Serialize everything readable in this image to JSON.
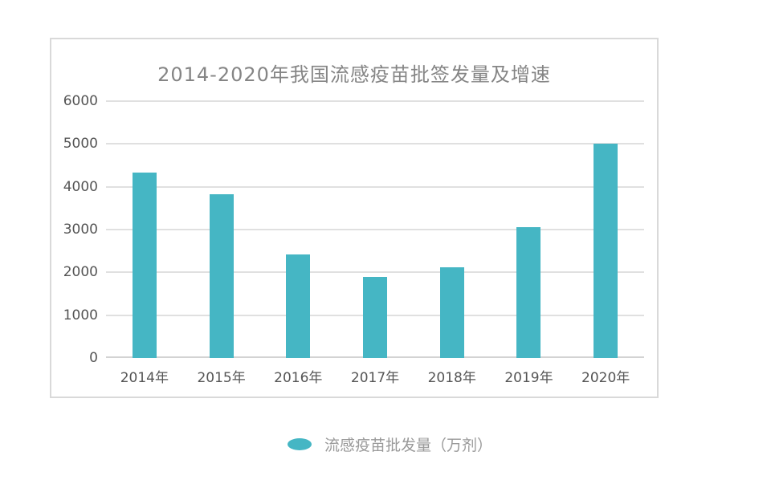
{
  "page": {
    "background": "#ffffff"
  },
  "chart_data": {
    "type": "bar",
    "title": "2014-2020年我国流感疫苗批签发量及增速",
    "categories": [
      "2014年",
      "2015年",
      "2016年",
      "2017年",
      "2018年",
      "2019年",
      "2020年"
    ],
    "series": [
      {
        "name": "流感疫苗批发量（万剂）",
        "values": [
          4340,
          3830,
          2410,
          1900,
          2120,
          3060,
          5000
        ]
      }
    ],
    "xlabel": "",
    "ylabel": "",
    "ylim": [
      0,
      6000
    ],
    "yticks": [
      0,
      1000,
      2000,
      3000,
      4000,
      5000,
      6000
    ],
    "grid": "horizontal",
    "legend_position": "bottom-center",
    "colors": {
      "bar": "#45b6c4",
      "grid_line": "#e0e0e0",
      "axis_line": "#d3d3d3",
      "panel_border": "#d9d9d9",
      "title_text": "#858585",
      "axis_text": "#555555",
      "legend_text": "#999999"
    }
  },
  "legend": {
    "marker": "ellipse",
    "label": "流感疫苗批发量（万剂）"
  }
}
